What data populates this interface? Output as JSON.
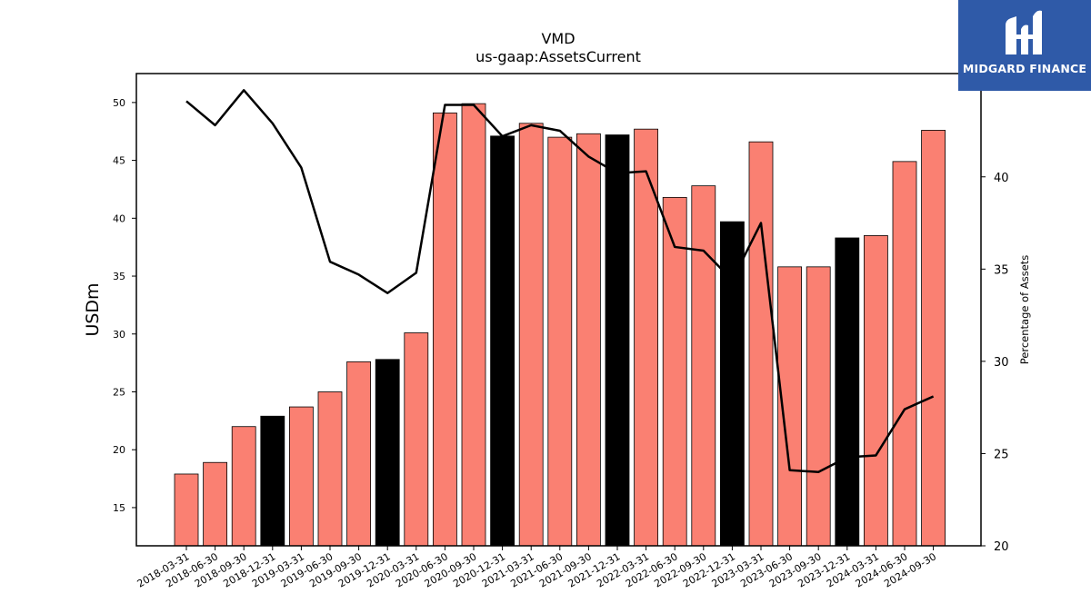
{
  "chart_data": {
    "type": "bar",
    "title": "VMD",
    "subtitle": "us-gaap:AssetsCurrent",
    "ylabel": "USDm",
    "y2label": "Percentage of Assets",
    "ylim": [
      11.7,
      52.5
    ],
    "y2lim": [
      20,
      45.6
    ],
    "yticks": [
      15,
      20,
      25,
      30,
      35,
      40,
      45,
      50
    ],
    "y2ticks": [
      20,
      25,
      30,
      35,
      40
    ],
    "categories": [
      "2018-03-31",
      "2018-06-30",
      "2018-09-30",
      "2018-12-31",
      "2019-03-31",
      "2019-06-30",
      "2019-09-30",
      "2019-12-31",
      "2020-03-31",
      "2020-06-30",
      "2020-09-30",
      "2020-12-31",
      "2021-03-31",
      "2021-06-30",
      "2021-09-30",
      "2021-12-31",
      "2022-03-31",
      "2022-06-30",
      "2022-09-30",
      "2022-12-31",
      "2023-03-31",
      "2023-06-30",
      "2023-09-30",
      "2023-12-31",
      "2024-03-31",
      "2024-06-30",
      "2024-09-30"
    ],
    "series": [
      {
        "kind": "bar",
        "axis": "left",
        "values": [
          17.9,
          18.9,
          22.0,
          22.9,
          23.7,
          25.0,
          27.6,
          27.8,
          30.1,
          49.1,
          49.9,
          47.1,
          48.2,
          47.0,
          47.3,
          47.2,
          47.7,
          41.8,
          42.8,
          39.7,
          46.6,
          35.8,
          35.8,
          38.3,
          38.5,
          44.9,
          47.6
        ],
        "highlight": [
          false,
          false,
          false,
          true,
          false,
          false,
          false,
          true,
          false,
          false,
          false,
          true,
          false,
          false,
          false,
          true,
          false,
          false,
          false,
          true,
          false,
          false,
          false,
          true,
          false,
          false,
          false
        ]
      },
      {
        "kind": "line",
        "axis": "right",
        "values": [
          44.1,
          42.8,
          44.7,
          42.9,
          40.5,
          35.4,
          34.7,
          33.7,
          34.8,
          43.9,
          43.9,
          42.2,
          42.8,
          42.5,
          41.1,
          40.2,
          40.3,
          36.2,
          36.0,
          34.4,
          37.5,
          24.1,
          24.0,
          24.8,
          24.9,
          27.4,
          28.1
        ]
      }
    ],
    "colors": {
      "bar": "#fa8072",
      "bar_highlight": "#000000",
      "line": "#000000"
    },
    "grid": false,
    "legend": "none"
  },
  "logo": {
    "text": "MIDGARD FINANCE",
    "icon": "midgard-logo-icon"
  }
}
